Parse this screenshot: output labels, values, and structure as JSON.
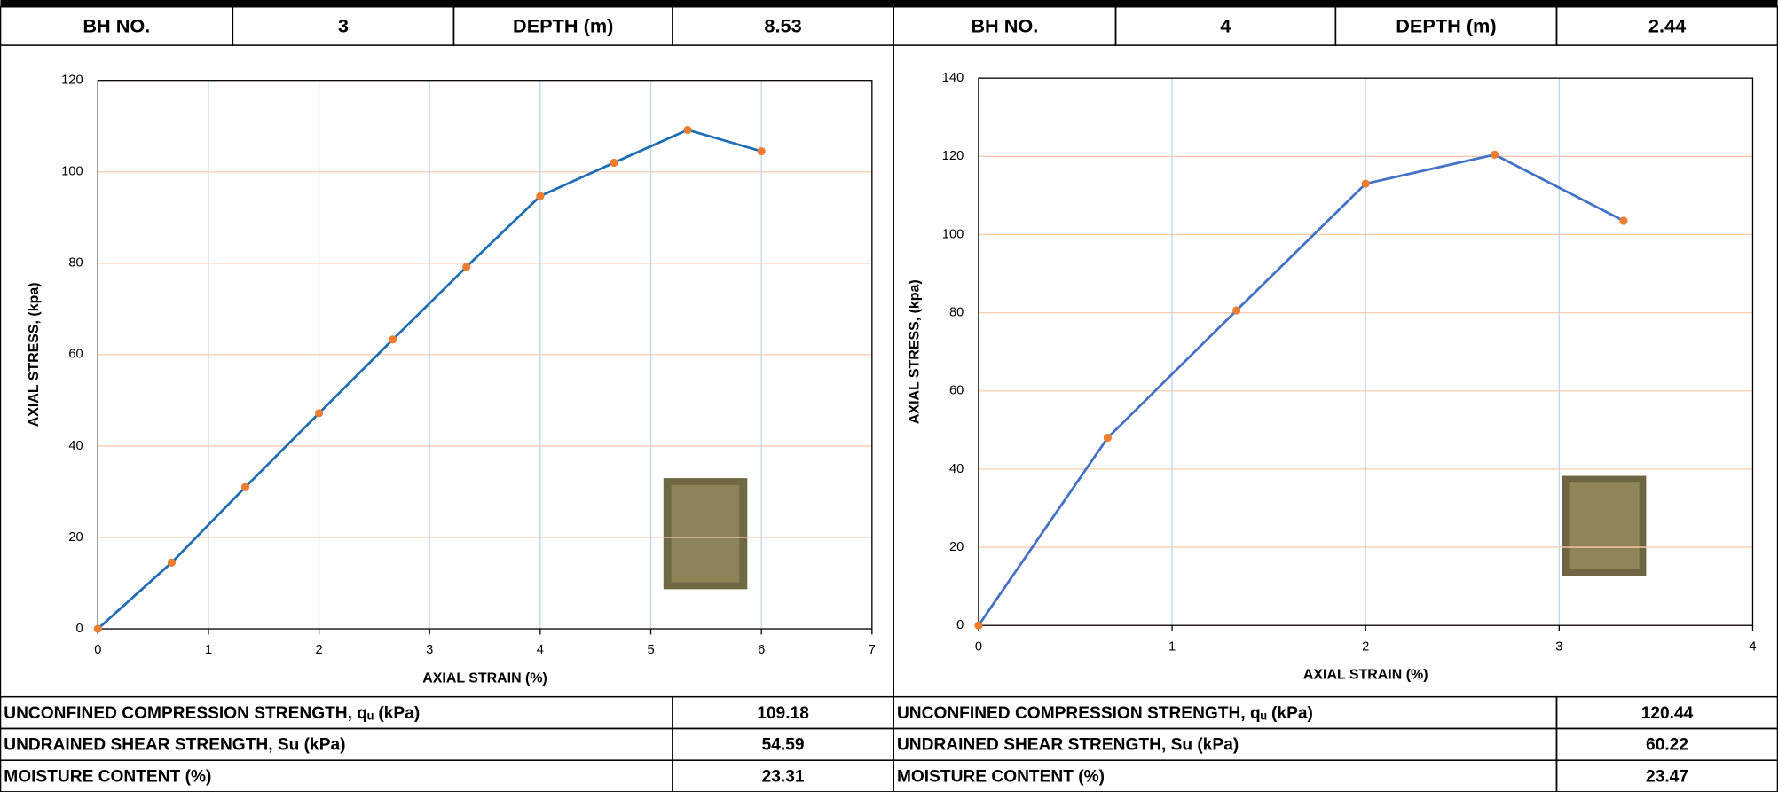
{
  "chart_data": [
    {
      "type": "line",
      "x_label": "AXIAL STRAIN (%)",
      "y_label": "AXIAL STRESS, (kpa)",
      "x": [
        0,
        0.667,
        1.333,
        2,
        2.667,
        3.333,
        4,
        4.667,
        5.333,
        6
      ],
      "series": [
        {
          "color": "#1f6fb4",
          "marker_color": "#ed7d31",
          "values": [
            0,
            14.5,
            31,
            47.2,
            63.3,
            79.2,
            94.7,
            102,
            109.18,
            104.5
          ]
        }
      ],
      "xlim": [
        0,
        7
      ],
      "xticks": [
        0,
        1,
        2,
        3,
        4,
        5,
        6,
        7
      ],
      "ylim": [
        0,
        120
      ],
      "yticks": [
        0,
        20,
        40,
        60,
        80,
        100,
        120
      ],
      "grid": true,
      "xgrid_color": "#bdd7ee",
      "ygrid_color": "#f8cbad"
    },
    {
      "type": "line",
      "x_label": "AXIAL STRAIN (%)",
      "y_label": "AXIAL STRESS, (kpa)",
      "x": [
        0,
        0.667,
        1.333,
        2,
        2.667,
        3.333
      ],
      "series": [
        {
          "color": "#4472c4",
          "marker_color": "#ed7d31",
          "values": [
            0,
            48,
            80.6,
            113,
            120.44,
            103.5
          ]
        }
      ],
      "xlim": [
        0,
        4
      ],
      "xticks": [
        0,
        1,
        2,
        3,
        4
      ],
      "ylim": [
        0,
        140
      ],
      "yticks": [
        0,
        20,
        40,
        60,
        80,
        100,
        120,
        140
      ],
      "grid": true,
      "xgrid_color": "#bdd7ee",
      "ygrid_color": "#f8cbad"
    }
  ],
  "panels": [
    {
      "header": [
        "BH NO.",
        3,
        "DEPTH (m)",
        8.53
      ],
      "results": [
        [
          "UNCONFINED COMPRESSION STRENGTH, qᵤ (kPa)",
          109.18
        ],
        [
          "UNDRAINED SHEAR STRENGTH, Su (kPa)",
          54.59
        ],
        [
          "MOISTURE CONTENT (%)",
          23.31
        ]
      ]
    },
    {
      "header": [
        "BH NO.",
        4,
        "DEPTH (m)",
        2.44
      ],
      "results": [
        [
          "UNCONFINED COMPRESSION STRENGTH, qᵤ (kPa)",
          120.44
        ],
        [
          "UNDRAINED SHEAR STRENGTH, Su (kPa)",
          60.22
        ],
        [
          "MOISTURE CONTENT (%)",
          23.47
        ]
      ]
    }
  ]
}
